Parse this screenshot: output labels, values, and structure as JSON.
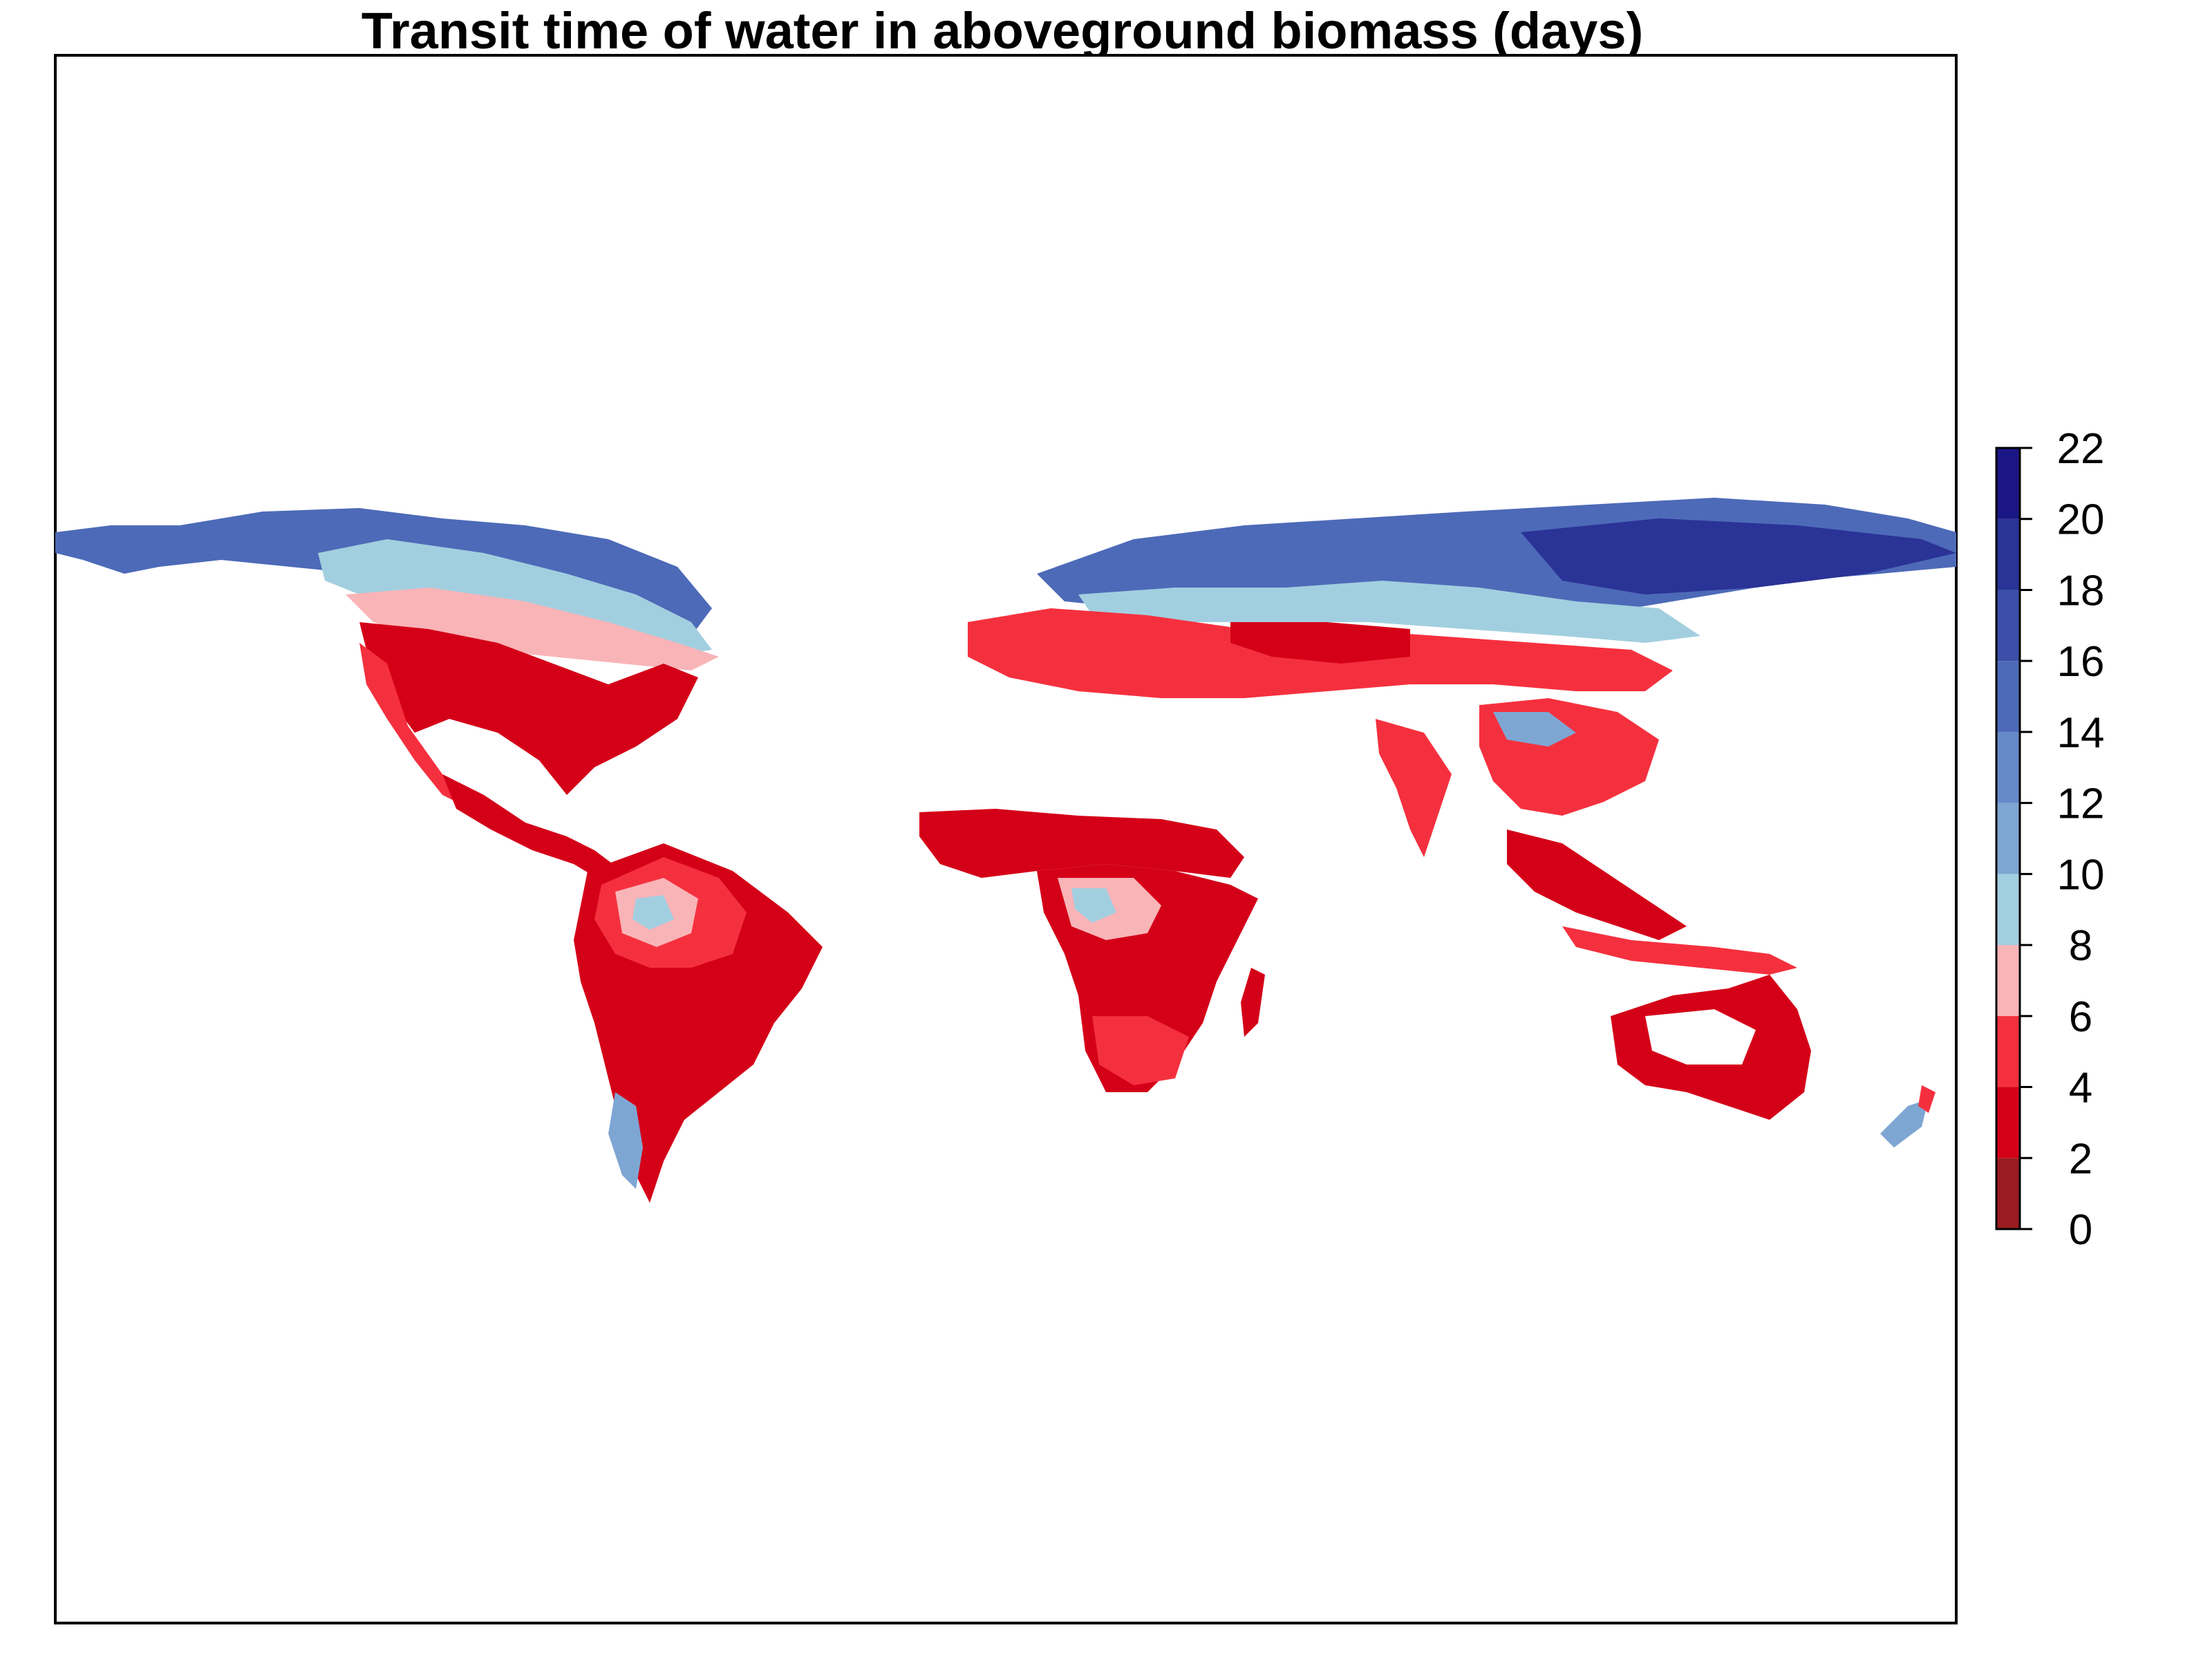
{
  "title": "Transit time of water in aboveground biomass (days)",
  "legend": {
    "breaks": [
      0,
      2,
      4,
      6,
      8,
      10,
      12,
      14,
      16,
      18,
      20,
      22
    ],
    "labels": [
      "0",
      "2",
      "4",
      "6",
      "8",
      "10",
      "12",
      "14",
      "16",
      "18",
      "20",
      "22"
    ],
    "colors": [
      "#9b1b22",
      "#d40018",
      "#f5303e",
      "#f9b4b8",
      "#a2cfe0",
      "#7ea6d3",
      "#6689c8",
      "#4d6ab8",
      "#3b4fa8",
      "#2a3396",
      "#1b1685"
    ]
  }
}
